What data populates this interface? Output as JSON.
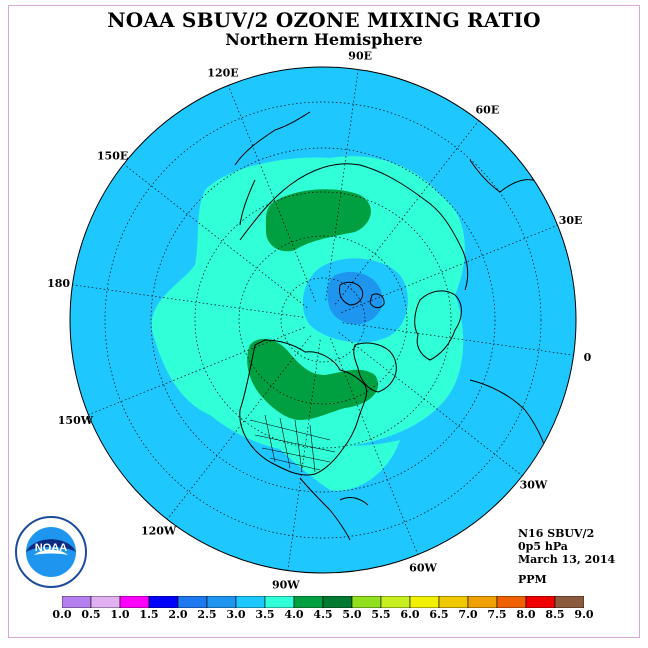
{
  "title": "NOAA SBUV/2 OZONE MIXING RATIO",
  "subtitle": "Northern Hemisphere",
  "longitude_labels": [
    "90E",
    "60E",
    "30E",
    "0",
    "30W",
    "60W",
    "90W",
    "120W",
    "150W",
    "180",
    "150E",
    "120E"
  ],
  "info": {
    "instrument": "N16 SBUV/2",
    "level": "0p5 hPa",
    "date": "March 13, 2014"
  },
  "units": "PPM",
  "colorbar": {
    "ticks": [
      "0.0",
      "0.5",
      "1.0",
      "1.5",
      "2.0",
      "2.5",
      "3.0",
      "3.5",
      "4.0",
      "4.5",
      "5.0",
      "5.5",
      "6.0",
      "6.5",
      "7.0",
      "7.5",
      "8.0",
      "8.5",
      "9.0"
    ],
    "colors": [
      "#b57ff0",
      "#e0b0f0",
      "#ff00ff",
      "#0000ff",
      "#1e78f0",
      "#1e96f0",
      "#1ec8ff",
      "#30ffd8",
      "#00a040",
      "#007a30",
      "#90e020",
      "#c8f020",
      "#f0f000",
      "#f0c800",
      "#f0a000",
      "#f06000",
      "#f00000",
      "#8b5a3c"
    ]
  },
  "logo": {
    "text": "NOAA",
    "ring_text": "NATIONAL OCEANIC AND ATMOSPHERIC ADMINISTRATION · U.S. DEPARTMENT OF COMMERCE"
  },
  "colors": {
    "background_field": "#1ec8ff",
    "field_3_5": "#30ffd8",
    "field_4_0": "#00a040",
    "field_2_5": "#1e96f0",
    "coastline": "#000000"
  }
}
